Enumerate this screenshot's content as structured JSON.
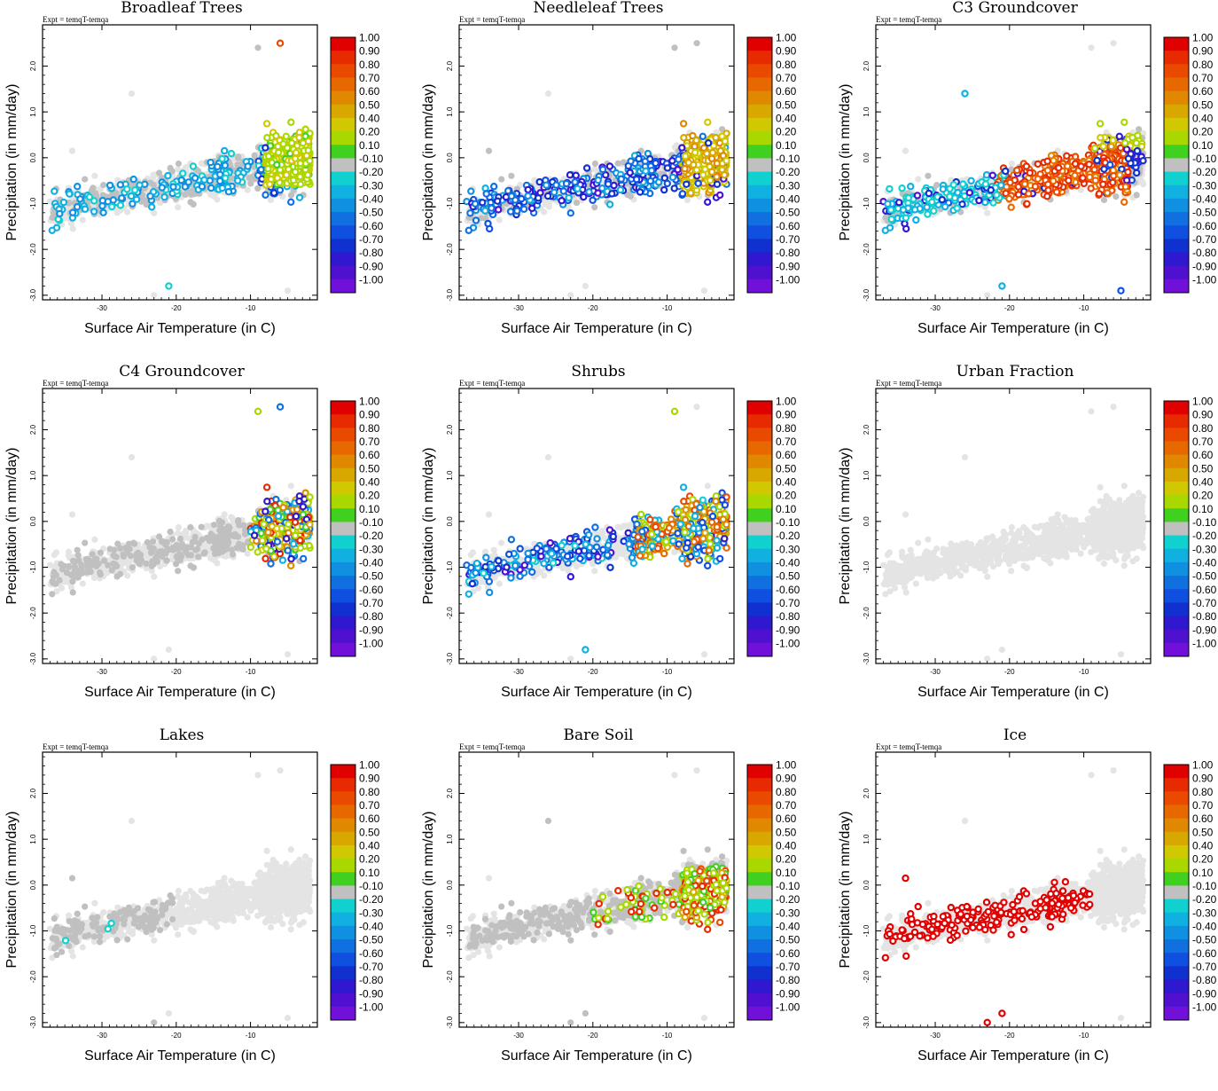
{
  "figure": {
    "expt_label": "Expt = temqT-temqa",
    "x_label": "Surface Air Temperature (in C)",
    "y_label": "Precipitation (in mm/day)",
    "x_ticks": [
      "-30",
      "-20",
      "-10"
    ],
    "y_ticks": [
      "2.0",
      "1.0",
      "0.0",
      "-1.0",
      "-2.0",
      "-3.0"
    ],
    "colorbar": {
      "labels": [
        "1.00",
        "0.90",
        "0.80",
        "0.70",
        "0.60",
        "0.50",
        "0.40",
        "0.20",
        "0.10",
        "-0.10",
        "-0.20",
        "-0.30",
        "-0.40",
        "-0.50",
        "-0.60",
        "-0.70",
        "-0.80",
        "-0.90",
        "-1.00"
      ],
      "colors": [
        "#e00000",
        "#e82a00",
        "#ea4a00",
        "#e86800",
        "#e08800",
        "#d8a800",
        "#d0c800",
        "#a8d800",
        "#40d020",
        "#c0c0c0",
        "#10d0d0",
        "#10b0e0",
        "#1090e0",
        "#1070e0",
        "#1050e0",
        "#1030d0",
        "#3018d0",
        "#5010d0",
        "#7010d8"
      ]
    }
  },
  "chart_data": [
    {
      "type": "scatter",
      "title": "Broadleaf Trees",
      "xlabel": "Surface Air Temperature (in C)",
      "ylabel": "Precipitation (in mm/day)",
      "xlim": [
        -38,
        -1
      ],
      "ylim": [
        -3.1,
        2.9
      ],
      "colorbar_range": [
        -1.0,
        1.0
      ],
      "highlight": "broadleaf"
    },
    {
      "type": "scatter",
      "title": "Needleleaf Trees",
      "xlabel": "Surface Air Temperature (in C)",
      "ylabel": "Precipitation (in mm/day)",
      "xlim": [
        -38,
        -1
      ],
      "ylim": [
        -3.1,
        2.9
      ],
      "colorbar_range": [
        -1.0,
        1.0
      ],
      "highlight": "needleleaf"
    },
    {
      "type": "scatter",
      "title": "C3 Groundcover",
      "xlabel": "Surface Air Temperature (in C)",
      "ylabel": "Precipitation (in mm/day)",
      "xlim": [
        -38,
        -1
      ],
      "ylim": [
        -3.1,
        2.9
      ],
      "colorbar_range": [
        -1.0,
        1.0
      ],
      "highlight": "c3"
    },
    {
      "type": "scatter",
      "title": "C4 Groundcover",
      "xlabel": "Surface Air Temperature (in C)",
      "ylabel": "Precipitation (in mm/day)",
      "xlim": [
        -38,
        -1
      ],
      "ylim": [
        -3.1,
        2.9
      ],
      "colorbar_range": [
        -1.0,
        1.0
      ],
      "highlight": "c4"
    },
    {
      "type": "scatter",
      "title": "Shrubs",
      "xlabel": "Surface Air Temperature (in C)",
      "ylabel": "Precipitation (in mm/day)",
      "xlim": [
        -38,
        -1
      ],
      "ylim": [
        -3.1,
        2.9
      ],
      "colorbar_range": [
        -1.0,
        1.0
      ],
      "highlight": "shrubs"
    },
    {
      "type": "scatter",
      "title": "Urban Fraction",
      "xlabel": "Surface Air Temperature (in C)",
      "ylabel": "Precipitation (in mm/day)",
      "xlim": [
        -38,
        -1
      ],
      "ylim": [
        -3.1,
        2.9
      ],
      "colorbar_range": [
        -1.0,
        1.0
      ],
      "highlight": "urban"
    },
    {
      "type": "scatter",
      "title": "Lakes",
      "xlabel": "Surface Air Temperature (in C)",
      "ylabel": "Precipitation (in mm/day)",
      "xlim": [
        -38,
        -1
      ],
      "ylim": [
        -3.1,
        2.9
      ],
      "colorbar_range": [
        -1.0,
        1.0
      ],
      "highlight": "lakes"
    },
    {
      "type": "scatter",
      "title": "Bare Soil",
      "xlabel": "Surface Air Temperature (in C)",
      "ylabel": "Precipitation (in mm/day)",
      "xlim": [
        -38,
        -1
      ],
      "ylim": [
        -3.1,
        2.9
      ],
      "colorbar_range": [
        -1.0,
        1.0
      ],
      "highlight": "baresoil"
    },
    {
      "type": "scatter",
      "title": "Ice",
      "xlabel": "Surface Air Temperature (in C)",
      "ylabel": "Precipitation (in mm/day)",
      "xlim": [
        -38,
        -1
      ],
      "ylim": [
        -3.1,
        2.9
      ],
      "colorbar_range": [
        -1.0,
        1.0
      ],
      "highlight": "ice"
    }
  ]
}
